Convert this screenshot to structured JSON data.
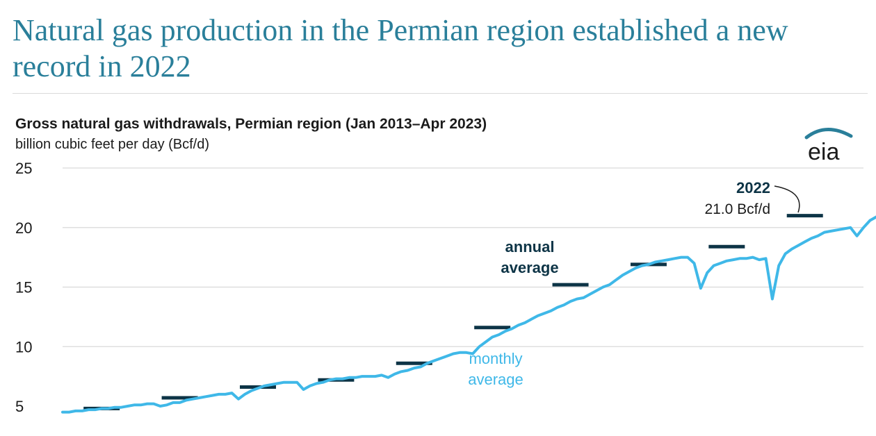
{
  "headline": "Natural gas production in the Permian region established a new record in 2022",
  "logo_text": "eia",
  "colors": {
    "headline": "#2a7f9a",
    "monthly_series": "#3fb8e8",
    "annual_series": "#0d3446",
    "grid": "#d9d9d9",
    "text": "#1b1b1b"
  },
  "chart_data": {
    "type": "line",
    "title": "Gross natural gas withdrawals, Permian region (Jan 2013–Apr 2023)",
    "ylabel": "billion cubic feet per day (Bcf/d)",
    "xlabel": "",
    "ylim": [
      5,
      25
    ],
    "yticks": [
      5,
      10,
      15,
      20,
      25
    ],
    "x_range": [
      "2013-01",
      "2023-04"
    ],
    "grid": "horizontal",
    "series": [
      {
        "name": "monthly average",
        "label_lines": [
          "monthly",
          "average"
        ],
        "style": "line",
        "monthly_values": [
          4.5,
          4.5,
          4.6,
          4.6,
          4.7,
          4.7,
          4.8,
          4.8,
          4.9,
          4.9,
          5.0,
          5.1,
          5.1,
          5.2,
          5.2,
          5.0,
          5.1,
          5.3,
          5.3,
          5.5,
          5.6,
          5.7,
          5.8,
          5.9,
          6.0,
          6.0,
          6.1,
          5.6,
          6.0,
          6.3,
          6.5,
          6.7,
          6.8,
          6.9,
          7.0,
          7.0,
          7.0,
          6.4,
          6.7,
          6.9,
          7.0,
          7.2,
          7.3,
          7.3,
          7.4,
          7.4,
          7.5,
          7.5,
          7.5,
          7.6,
          7.4,
          7.7,
          7.9,
          8.0,
          8.2,
          8.3,
          8.6,
          8.8,
          9.0,
          9.2,
          9.4,
          9.5,
          9.5,
          9.4,
          10.0,
          10.4,
          10.8,
          11.0,
          11.3,
          11.5,
          11.8,
          12.0,
          12.3,
          12.6,
          12.8,
          13.0,
          13.3,
          13.5,
          13.8,
          14.0,
          14.1,
          14.4,
          14.7,
          15.0,
          15.2,
          15.6,
          16.0,
          16.3,
          16.6,
          16.8,
          16.9,
          17.1,
          17.2,
          17.3,
          17.4,
          17.5,
          17.5,
          17.0,
          14.9,
          16.2,
          16.8,
          17.0,
          17.2,
          17.3,
          17.4,
          17.4,
          17.5,
          17.3,
          17.4,
          14.0,
          16.8,
          17.8,
          18.2,
          18.5,
          18.8,
          19.1,
          19.3,
          19.6,
          19.7,
          19.8,
          19.9,
          20.0,
          19.3,
          20.0,
          20.6,
          20.9,
          21.1,
          21.2,
          21.0,
          20.8,
          21.3,
          21.8,
          22.0,
          21.9,
          21.7,
          21.9,
          22.0,
          22.1,
          22.2,
          22.3,
          22.3
        ]
      },
      {
        "name": "annual average",
        "label_lines": [
          "annual",
          "average"
        ],
        "style": "step",
        "years": [
          2013,
          2014,
          2015,
          2016,
          2017,
          2018,
          2019,
          2020,
          2021,
          2022
        ],
        "values": [
          4.8,
          5.7,
          6.6,
          7.2,
          8.6,
          11.6,
          15.2,
          16.9,
          18.4,
          21.0
        ]
      }
    ],
    "annotations": [
      {
        "year": "2022",
        "value": "21.0 Bcf/d"
      }
    ]
  }
}
